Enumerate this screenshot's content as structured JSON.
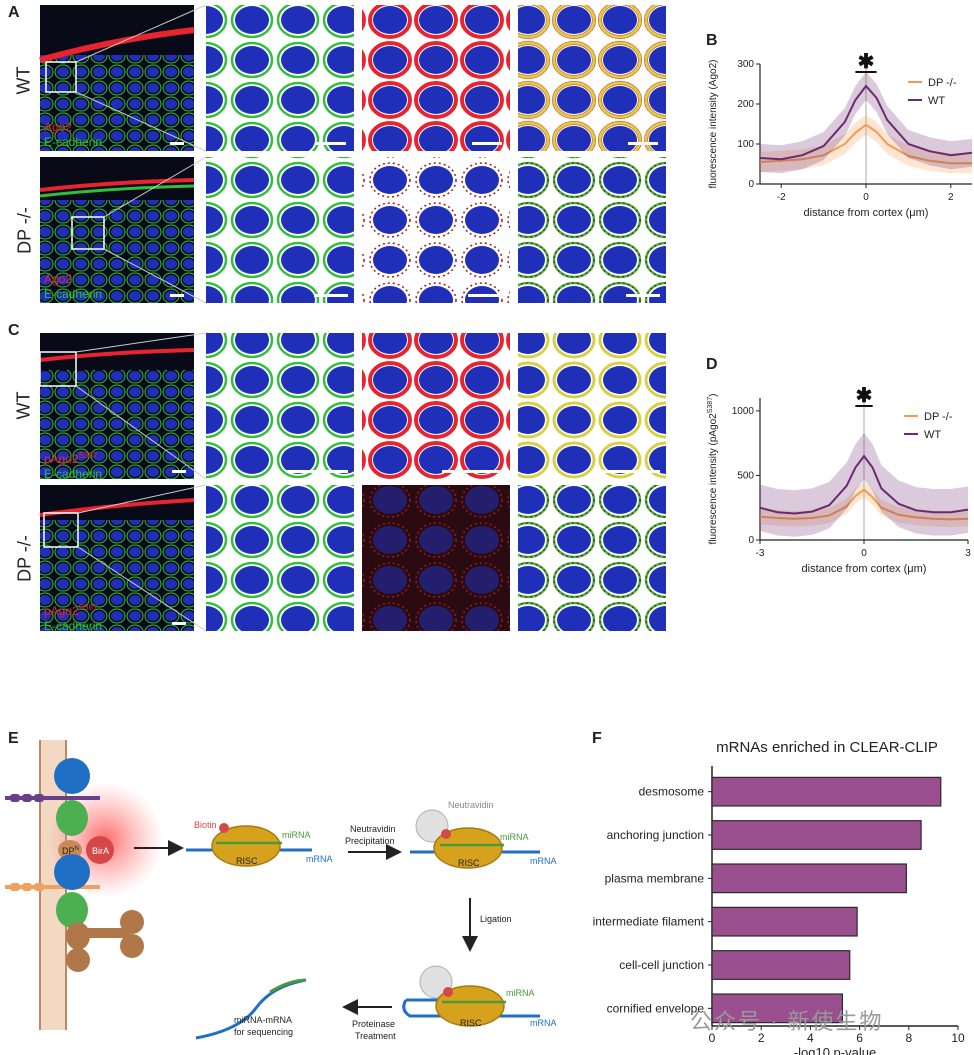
{
  "panel_letters": {
    "a": "A",
    "b": "B",
    "c": "C",
    "d": "D",
    "e": "E",
    "f": "F"
  },
  "rows": {
    "wt": "WT",
    "dp": "DP -/-"
  },
  "stains_ab": {
    "red": "Ago2",
    "green": "E-cadherin"
  },
  "stains_c": {
    "red": "pAgo2",
    "sup": "S387",
    "green": "E-cadherin"
  },
  "colors": {
    "red": "#e8252e",
    "green": "#2fbf3a",
    "blue": "#2233cc",
    "wt": "#6b2a6e",
    "dp": "#f29a50",
    "bar": "#9a4f8f"
  },
  "plot_b": {
    "ylabel": "fluorescence intensity (Ago2)",
    "xlabel": "distance from cortex (μm)",
    "star": "✱",
    "legend": [
      {
        "name": "DP -/-",
        "color": "#f29a50"
      },
      {
        "name": "WT",
        "color": "#6b2a6e"
      }
    ]
  },
  "plot_d": {
    "ylabel_pre": "fluorescence intensity (pAgo2",
    "ylabel_sup": "S387",
    "ylabel_post": ")",
    "xlabel": "distance from cortex (μm)",
    "star": "✱",
    "legend": [
      {
        "name": "DP -/-",
        "color": "#f29a50"
      },
      {
        "name": "WT",
        "color": "#6b2a6e"
      }
    ]
  },
  "diagram_e": {
    "dp_label": "DP",
    "dp_sup": "N",
    "bira": "BirA",
    "biotin": "Biotin",
    "mirna": "miRNA",
    "mrna": "mRNA",
    "risc": "RISC",
    "neutravidin": "Neutravidin",
    "step1_line1": "Neutravidin",
    "step1_line2": "Precipitation",
    "step2": "Ligation",
    "step3_line1": "Proteinase",
    "step3_line2": "Treatment",
    "result_line1": "miRNA-mRNA",
    "result_line2": "for sequencing"
  },
  "watermark": "公众号 · 新使生物",
  "chart_data": [
    {
      "type": "line",
      "panel": "B",
      "xlabel": "distance from cortex (μm)",
      "ylabel": "fluorescence intensity (Ago2)",
      "xlim": [
        -2.5,
        2.5
      ],
      "ylim": [
        0,
        300
      ],
      "xticks": [
        -2,
        0,
        2
      ],
      "yticks": [
        0,
        100,
        200,
        300
      ],
      "x": [
        -2.5,
        -2,
        -1.5,
        -1,
        -0.5,
        -0.25,
        0,
        0.25,
        0.5,
        1,
        1.5,
        2,
        2.5
      ],
      "series": [
        {
          "name": "DP -/-",
          "values": [
            55,
            58,
            62,
            72,
            100,
            128,
            148,
            130,
            100,
            70,
            58,
            52,
            52
          ],
          "band": 25
        },
        {
          "name": "WT",
          "values": [
            65,
            62,
            72,
            95,
            155,
            210,
            245,
            215,
            160,
            100,
            82,
            72,
            78
          ],
          "band": 35
        }
      ],
      "annotation": "✱"
    },
    {
      "type": "line",
      "panel": "D",
      "xlabel": "distance from cortex (μm)",
      "ylabel": "fluorescence intensity (pAgo2 S387)",
      "xlim": [
        -3,
        3
      ],
      "ylim": [
        0,
        1100
      ],
      "xticks": [
        -3,
        0,
        3
      ],
      "yticks": [
        0,
        500,
        1000
      ],
      "x": [
        -3,
        -2.5,
        -2,
        -1.5,
        -1,
        -0.5,
        -0.25,
        0,
        0.25,
        0.5,
        1,
        1.5,
        2,
        2.5,
        3
      ],
      "series": [
        {
          "name": "DP -/-",
          "values": [
            180,
            170,
            165,
            170,
            190,
            260,
            340,
            390,
            330,
            250,
            195,
            175,
            165,
            160,
            165
          ],
          "band": 60
        },
        {
          "name": "WT",
          "values": [
            250,
            215,
            205,
            220,
            270,
            420,
            560,
            650,
            560,
            400,
            280,
            230,
            215,
            215,
            235
          ],
          "band": 180
        }
      ],
      "annotation": "✱"
    },
    {
      "type": "bar",
      "panel": "F",
      "orientation": "horizontal",
      "title": "mRNAs enriched in CLEAR-CLIP",
      "xlabel": "-log10 p-value",
      "xlim": [
        0,
        10
      ],
      "xticks": [
        0,
        2,
        4,
        6,
        8,
        10
      ],
      "categories": [
        "desmosome",
        "anchoring junction",
        "plasma membrane",
        "intermediate filament",
        "cell-cell junction",
        "cornified envelope"
      ],
      "values": [
        9.3,
        8.5,
        7.9,
        5.9,
        5.6,
        5.3
      ]
    }
  ]
}
